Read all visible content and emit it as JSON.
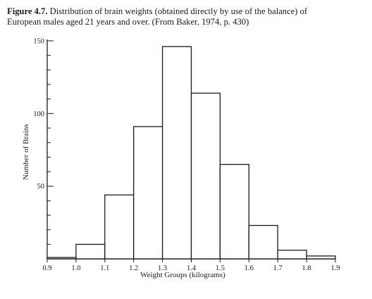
{
  "caption": {
    "label": "Figure 4.7.",
    "line1": "Distribution of brain weights (obtained directly by use of the balance) of",
    "line2": "European males aged 21 years and over.   (From Baker, 1974, p. 430)"
  },
  "chart_data": {
    "type": "bar",
    "xlabel": "Weight Groups (kilograms)",
    "ylabel": "Number of Brains",
    "x_ticks": [
      "0.9",
      "1.0",
      "1.1",
      "1.2",
      "1.3",
      "1.4",
      "1.5",
      "1.6",
      "1.7",
      "1.8",
      "1.9"
    ],
    "y_ticks": [
      "50",
      "100",
      "150"
    ],
    "ylim": [
      0,
      150
    ],
    "xlim": [
      0.9,
      1.9
    ],
    "bins": [
      {
        "start": 0.9,
        "end": 1.0,
        "value": 1
      },
      {
        "start": 1.0,
        "end": 1.1,
        "value": 10
      },
      {
        "start": 1.1,
        "end": 1.2,
        "value": 44
      },
      {
        "start": 1.2,
        "end": 1.3,
        "value": 91
      },
      {
        "start": 1.3,
        "end": 1.4,
        "value": 146
      },
      {
        "start": 1.4,
        "end": 1.5,
        "value": 114
      },
      {
        "start": 1.5,
        "end": 1.6,
        "value": 65
      },
      {
        "start": 1.6,
        "end": 1.7,
        "value": 23
      },
      {
        "start": 1.7,
        "end": 1.8,
        "value": 6
      },
      {
        "start": 1.8,
        "end": 1.9,
        "value": 2
      }
    ],
    "grid": false,
    "legend": "none"
  }
}
